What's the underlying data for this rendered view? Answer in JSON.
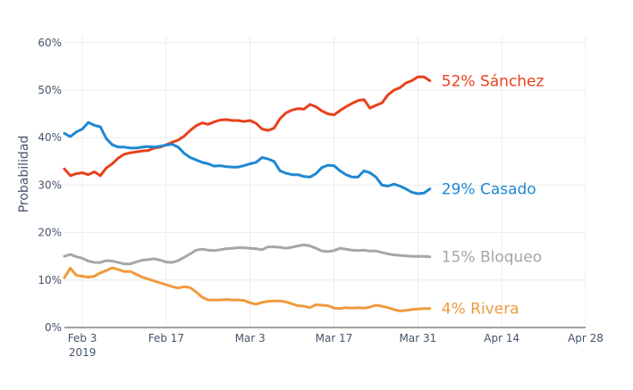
{
  "chart_data": {
    "type": "line",
    "title": "",
    "xlabel": "",
    "ylabel": "Probabilidad",
    "ylim": [
      0,
      0.62
    ],
    "yticks": [
      {
        "value": 0,
        "label": "0%"
      },
      {
        "value": 0.1,
        "label": "10%"
      },
      {
        "value": 0.2,
        "label": "20%"
      },
      {
        "value": 0.3,
        "label": "30%"
      },
      {
        "value": 0.4,
        "label": "40%"
      },
      {
        "value": 0.5,
        "label": "50%"
      },
      {
        "value": 0.6,
        "label": "60%"
      }
    ],
    "xlim": [
      "2019-01-31",
      "2019-04-28"
    ],
    "xticks": [
      {
        "date": "2019-02-03",
        "label": "Feb 3",
        "sublabel": "2019"
      },
      {
        "date": "2019-02-17",
        "label": "Feb 17",
        "sublabel": ""
      },
      {
        "date": "2019-03-03",
        "label": "Mar 3",
        "sublabel": ""
      },
      {
        "date": "2019-03-17",
        "label": "Mar 17",
        "sublabel": ""
      },
      {
        "date": "2019-03-31",
        "label": "Mar 31",
        "sublabel": ""
      },
      {
        "date": "2019-04-14",
        "label": "Apr 14",
        "sublabel": ""
      },
      {
        "date": "2019-04-28",
        "label": "Apr 28",
        "sublabel": ""
      }
    ],
    "grid": true,
    "legend": "end-labels",
    "series": [
      {
        "name": "Sánchez",
        "end_label": "52% Sánchez",
        "color": "#e8401c",
        "points": [
          [
            "2019-01-31",
            0.334
          ],
          [
            "2019-02-01",
            0.32
          ],
          [
            "2019-02-02",
            0.324
          ],
          [
            "2019-02-03",
            0.326
          ],
          [
            "2019-02-04",
            0.322
          ],
          [
            "2019-02-05",
            0.328
          ],
          [
            "2019-02-06",
            0.32
          ],
          [
            "2019-02-07",
            0.336
          ],
          [
            "2019-02-08",
            0.345
          ],
          [
            "2019-02-09",
            0.357
          ],
          [
            "2019-02-10",
            0.365
          ],
          [
            "2019-02-11",
            0.368
          ],
          [
            "2019-02-12",
            0.37
          ],
          [
            "2019-02-13",
            0.372
          ],
          [
            "2019-02-14",
            0.373
          ],
          [
            "2019-02-15",
            0.378
          ],
          [
            "2019-02-16",
            0.38
          ],
          [
            "2019-02-17",
            0.385
          ],
          [
            "2019-02-18",
            0.39
          ],
          [
            "2019-02-19",
            0.395
          ],
          [
            "2019-02-20",
            0.403
          ],
          [
            "2019-02-21",
            0.415
          ],
          [
            "2019-02-22",
            0.425
          ],
          [
            "2019-02-23",
            0.431
          ],
          [
            "2019-02-24",
            0.428
          ],
          [
            "2019-02-25",
            0.433
          ],
          [
            "2019-02-26",
            0.437
          ],
          [
            "2019-02-27",
            0.438
          ],
          [
            "2019-02-28",
            0.436
          ],
          [
            "2019-03-01",
            0.436
          ],
          [
            "2019-03-02",
            0.434
          ],
          [
            "2019-03-03",
            0.436
          ],
          [
            "2019-03-04",
            0.43
          ],
          [
            "2019-03-05",
            0.418
          ],
          [
            "2019-03-06",
            0.415
          ],
          [
            "2019-03-07",
            0.42
          ],
          [
            "2019-03-08",
            0.44
          ],
          [
            "2019-03-09",
            0.452
          ],
          [
            "2019-03-10",
            0.458
          ],
          [
            "2019-03-11",
            0.461
          ],
          [
            "2019-03-12",
            0.46
          ],
          [
            "2019-03-13",
            0.47
          ],
          [
            "2019-03-14",
            0.465
          ],
          [
            "2019-03-15",
            0.456
          ],
          [
            "2019-03-16",
            0.45
          ],
          [
            "2019-03-17",
            0.448
          ],
          [
            "2019-03-18",
            0.457
          ],
          [
            "2019-03-19",
            0.465
          ],
          [
            "2019-03-20",
            0.472
          ],
          [
            "2019-03-21",
            0.478
          ],
          [
            "2019-03-22",
            0.48
          ],
          [
            "2019-03-23",
            0.462
          ],
          [
            "2019-03-24",
            0.468
          ],
          [
            "2019-03-25",
            0.473
          ],
          [
            "2019-03-26",
            0.49
          ],
          [
            "2019-03-27",
            0.5
          ],
          [
            "2019-03-28",
            0.505
          ],
          [
            "2019-03-29",
            0.515
          ],
          [
            "2019-03-30",
            0.52
          ],
          [
            "2019-03-31",
            0.528
          ],
          [
            "2019-04-01",
            0.528
          ],
          [
            "2019-04-02",
            0.52
          ]
        ]
      },
      {
        "name": "Casado",
        "end_label": "29% Casado",
        "color": "#1e88d2",
        "points": [
          [
            "2019-01-31",
            0.409
          ],
          [
            "2019-02-01",
            0.402
          ],
          [
            "2019-02-02",
            0.412
          ],
          [
            "2019-02-03",
            0.418
          ],
          [
            "2019-02-04",
            0.432
          ],
          [
            "2019-02-05",
            0.426
          ],
          [
            "2019-02-06",
            0.423
          ],
          [
            "2019-02-07",
            0.398
          ],
          [
            "2019-02-08",
            0.385
          ],
          [
            "2019-02-09",
            0.38
          ],
          [
            "2019-02-10",
            0.38
          ],
          [
            "2019-02-11",
            0.378
          ],
          [
            "2019-02-12",
            0.378
          ],
          [
            "2019-02-13",
            0.38
          ],
          [
            "2019-02-14",
            0.381
          ],
          [
            "2019-02-15",
            0.38
          ],
          [
            "2019-02-16",
            0.382
          ],
          [
            "2019-02-17",
            0.384
          ],
          [
            "2019-02-18",
            0.386
          ],
          [
            "2019-02-19",
            0.38
          ],
          [
            "2019-02-20",
            0.367
          ],
          [
            "2019-02-21",
            0.358
          ],
          [
            "2019-02-22",
            0.353
          ],
          [
            "2019-02-23",
            0.348
          ],
          [
            "2019-02-24",
            0.345
          ],
          [
            "2019-02-25",
            0.34
          ],
          [
            "2019-02-26",
            0.341
          ],
          [
            "2019-02-27",
            0.339
          ],
          [
            "2019-02-28",
            0.338
          ],
          [
            "2019-03-01",
            0.338
          ],
          [
            "2019-03-02",
            0.341
          ],
          [
            "2019-03-03",
            0.345
          ],
          [
            "2019-03-04",
            0.348
          ],
          [
            "2019-03-05",
            0.358
          ],
          [
            "2019-03-06",
            0.355
          ],
          [
            "2019-03-07",
            0.35
          ],
          [
            "2019-03-08",
            0.33
          ],
          [
            "2019-03-09",
            0.325
          ],
          [
            "2019-03-10",
            0.322
          ],
          [
            "2019-03-11",
            0.322
          ],
          [
            "2019-03-12",
            0.318
          ],
          [
            "2019-03-13",
            0.317
          ],
          [
            "2019-03-14",
            0.324
          ],
          [
            "2019-03-15",
            0.337
          ],
          [
            "2019-03-16",
            0.342
          ],
          [
            "2019-03-17",
            0.341
          ],
          [
            "2019-03-18",
            0.33
          ],
          [
            "2019-03-19",
            0.322
          ],
          [
            "2019-03-20",
            0.317
          ],
          [
            "2019-03-21",
            0.317
          ],
          [
            "2019-03-22",
            0.33
          ],
          [
            "2019-03-23",
            0.326
          ],
          [
            "2019-03-24",
            0.317
          ],
          [
            "2019-03-25",
            0.3
          ],
          [
            "2019-03-26",
            0.298
          ],
          [
            "2019-03-27",
            0.302
          ],
          [
            "2019-03-28",
            0.298
          ],
          [
            "2019-03-29",
            0.292
          ],
          [
            "2019-03-30",
            0.285
          ],
          [
            "2019-03-31",
            0.282
          ],
          [
            "2019-04-01",
            0.283
          ],
          [
            "2019-04-02",
            0.292
          ]
        ]
      },
      {
        "name": "Bloqueo",
        "end_label": "15% Bloqueo",
        "color": "#a6a6a6",
        "points": [
          [
            "2019-01-31",
            0.15
          ],
          [
            "2019-02-01",
            0.154
          ],
          [
            "2019-02-02",
            0.149
          ],
          [
            "2019-02-03",
            0.146
          ],
          [
            "2019-02-04",
            0.14
          ],
          [
            "2019-02-05",
            0.137
          ],
          [
            "2019-02-06",
            0.137
          ],
          [
            "2019-02-07",
            0.141
          ],
          [
            "2019-02-08",
            0.14
          ],
          [
            "2019-02-09",
            0.137
          ],
          [
            "2019-02-10",
            0.134
          ],
          [
            "2019-02-11",
            0.134
          ],
          [
            "2019-02-12",
            0.138
          ],
          [
            "2019-02-13",
            0.142
          ],
          [
            "2019-02-14",
            0.143
          ],
          [
            "2019-02-15",
            0.145
          ],
          [
            "2019-02-16",
            0.142
          ],
          [
            "2019-02-17",
            0.138
          ],
          [
            "2019-02-18",
            0.137
          ],
          [
            "2019-02-19",
            0.141
          ],
          [
            "2019-02-20",
            0.148
          ],
          [
            "2019-02-21",
            0.155
          ],
          [
            "2019-02-22",
            0.163
          ],
          [
            "2019-02-23",
            0.165
          ],
          [
            "2019-02-24",
            0.163
          ],
          [
            "2019-02-25",
            0.162
          ],
          [
            "2019-02-26",
            0.164
          ],
          [
            "2019-02-27",
            0.166
          ],
          [
            "2019-02-28",
            0.167
          ],
          [
            "2019-03-01",
            0.168
          ],
          [
            "2019-03-02",
            0.168
          ],
          [
            "2019-03-03",
            0.167
          ],
          [
            "2019-03-04",
            0.166
          ],
          [
            "2019-03-05",
            0.164
          ],
          [
            "2019-03-06",
            0.17
          ],
          [
            "2019-03-07",
            0.17
          ],
          [
            "2019-03-08",
            0.169
          ],
          [
            "2019-03-09",
            0.167
          ],
          [
            "2019-03-10",
            0.169
          ],
          [
            "2019-03-11",
            0.172
          ],
          [
            "2019-03-12",
            0.174
          ],
          [
            "2019-03-13",
            0.172
          ],
          [
            "2019-03-14",
            0.167
          ],
          [
            "2019-03-15",
            0.161
          ],
          [
            "2019-03-16",
            0.16
          ],
          [
            "2019-03-17",
            0.162
          ],
          [
            "2019-03-18",
            0.167
          ],
          [
            "2019-03-19",
            0.165
          ],
          [
            "2019-03-20",
            0.163
          ],
          [
            "2019-03-21",
            0.162
          ],
          [
            "2019-03-22",
            0.163
          ],
          [
            "2019-03-23",
            0.161
          ],
          [
            "2019-03-24",
            0.161
          ],
          [
            "2019-03-25",
            0.158
          ],
          [
            "2019-03-26",
            0.155
          ],
          [
            "2019-03-27",
            0.153
          ],
          [
            "2019-03-28",
            0.152
          ],
          [
            "2019-03-29",
            0.151
          ],
          [
            "2019-03-30",
            0.15
          ],
          [
            "2019-03-31",
            0.15
          ],
          [
            "2019-04-01",
            0.15
          ],
          [
            "2019-04-02",
            0.149
          ]
        ]
      },
      {
        "name": "Rivera",
        "end_label": "4% Rivera",
        "color": "#f09a3e",
        "points": [
          [
            "2019-01-31",
            0.105
          ],
          [
            "2019-02-01",
            0.125
          ],
          [
            "2019-02-02",
            0.11
          ],
          [
            "2019-02-03",
            0.108
          ],
          [
            "2019-02-04",
            0.106
          ],
          [
            "2019-02-05",
            0.108
          ],
          [
            "2019-02-06",
            0.115
          ],
          [
            "2019-02-07",
            0.12
          ],
          [
            "2019-02-08",
            0.126
          ],
          [
            "2019-02-09",
            0.122
          ],
          [
            "2019-02-10",
            0.118
          ],
          [
            "2019-02-11",
            0.118
          ],
          [
            "2019-02-12",
            0.112
          ],
          [
            "2019-02-13",
            0.106
          ],
          [
            "2019-02-14",
            0.102
          ],
          [
            "2019-02-15",
            0.098
          ],
          [
            "2019-02-16",
            0.094
          ],
          [
            "2019-02-17",
            0.09
          ],
          [
            "2019-02-18",
            0.086
          ],
          [
            "2019-02-19",
            0.083
          ],
          [
            "2019-02-20",
            0.086
          ],
          [
            "2019-02-21",
            0.084
          ],
          [
            "2019-02-22",
            0.075
          ],
          [
            "2019-02-23",
            0.064
          ],
          [
            "2019-02-24",
            0.058
          ],
          [
            "2019-02-25",
            0.058
          ],
          [
            "2019-02-26",
            0.058
          ],
          [
            "2019-02-27",
            0.059
          ],
          [
            "2019-02-28",
            0.058
          ],
          [
            "2019-03-01",
            0.058
          ],
          [
            "2019-03-02",
            0.057
          ],
          [
            "2019-03-03",
            0.052
          ],
          [
            "2019-03-04",
            0.049
          ],
          [
            "2019-03-05",
            0.053
          ],
          [
            "2019-03-06",
            0.055
          ],
          [
            "2019-03-07",
            0.056
          ],
          [
            "2019-03-08",
            0.056
          ],
          [
            "2019-03-09",
            0.054
          ],
          [
            "2019-03-10",
            0.05
          ],
          [
            "2019-03-11",
            0.046
          ],
          [
            "2019-03-12",
            0.045
          ],
          [
            "2019-03-13",
            0.042
          ],
          [
            "2019-03-14",
            0.048
          ],
          [
            "2019-03-15",
            0.047
          ],
          [
            "2019-03-16",
            0.046
          ],
          [
            "2019-03-17",
            0.041
          ],
          [
            "2019-03-18",
            0.04
          ],
          [
            "2019-03-19",
            0.042
          ],
          [
            "2019-03-20",
            0.041
          ],
          [
            "2019-03-21",
            0.042
          ],
          [
            "2019-03-22",
            0.041
          ],
          [
            "2019-03-23",
            0.043
          ],
          [
            "2019-03-24",
            0.047
          ],
          [
            "2019-03-25",
            0.045
          ],
          [
            "2019-03-26",
            0.042
          ],
          [
            "2019-03-27",
            0.038
          ],
          [
            "2019-03-28",
            0.035
          ],
          [
            "2019-03-29",
            0.036
          ],
          [
            "2019-03-30",
            0.038
          ],
          [
            "2019-03-31",
            0.039
          ],
          [
            "2019-04-01",
            0.04
          ],
          [
            "2019-04-02",
            0.04
          ]
        ]
      }
    ]
  }
}
